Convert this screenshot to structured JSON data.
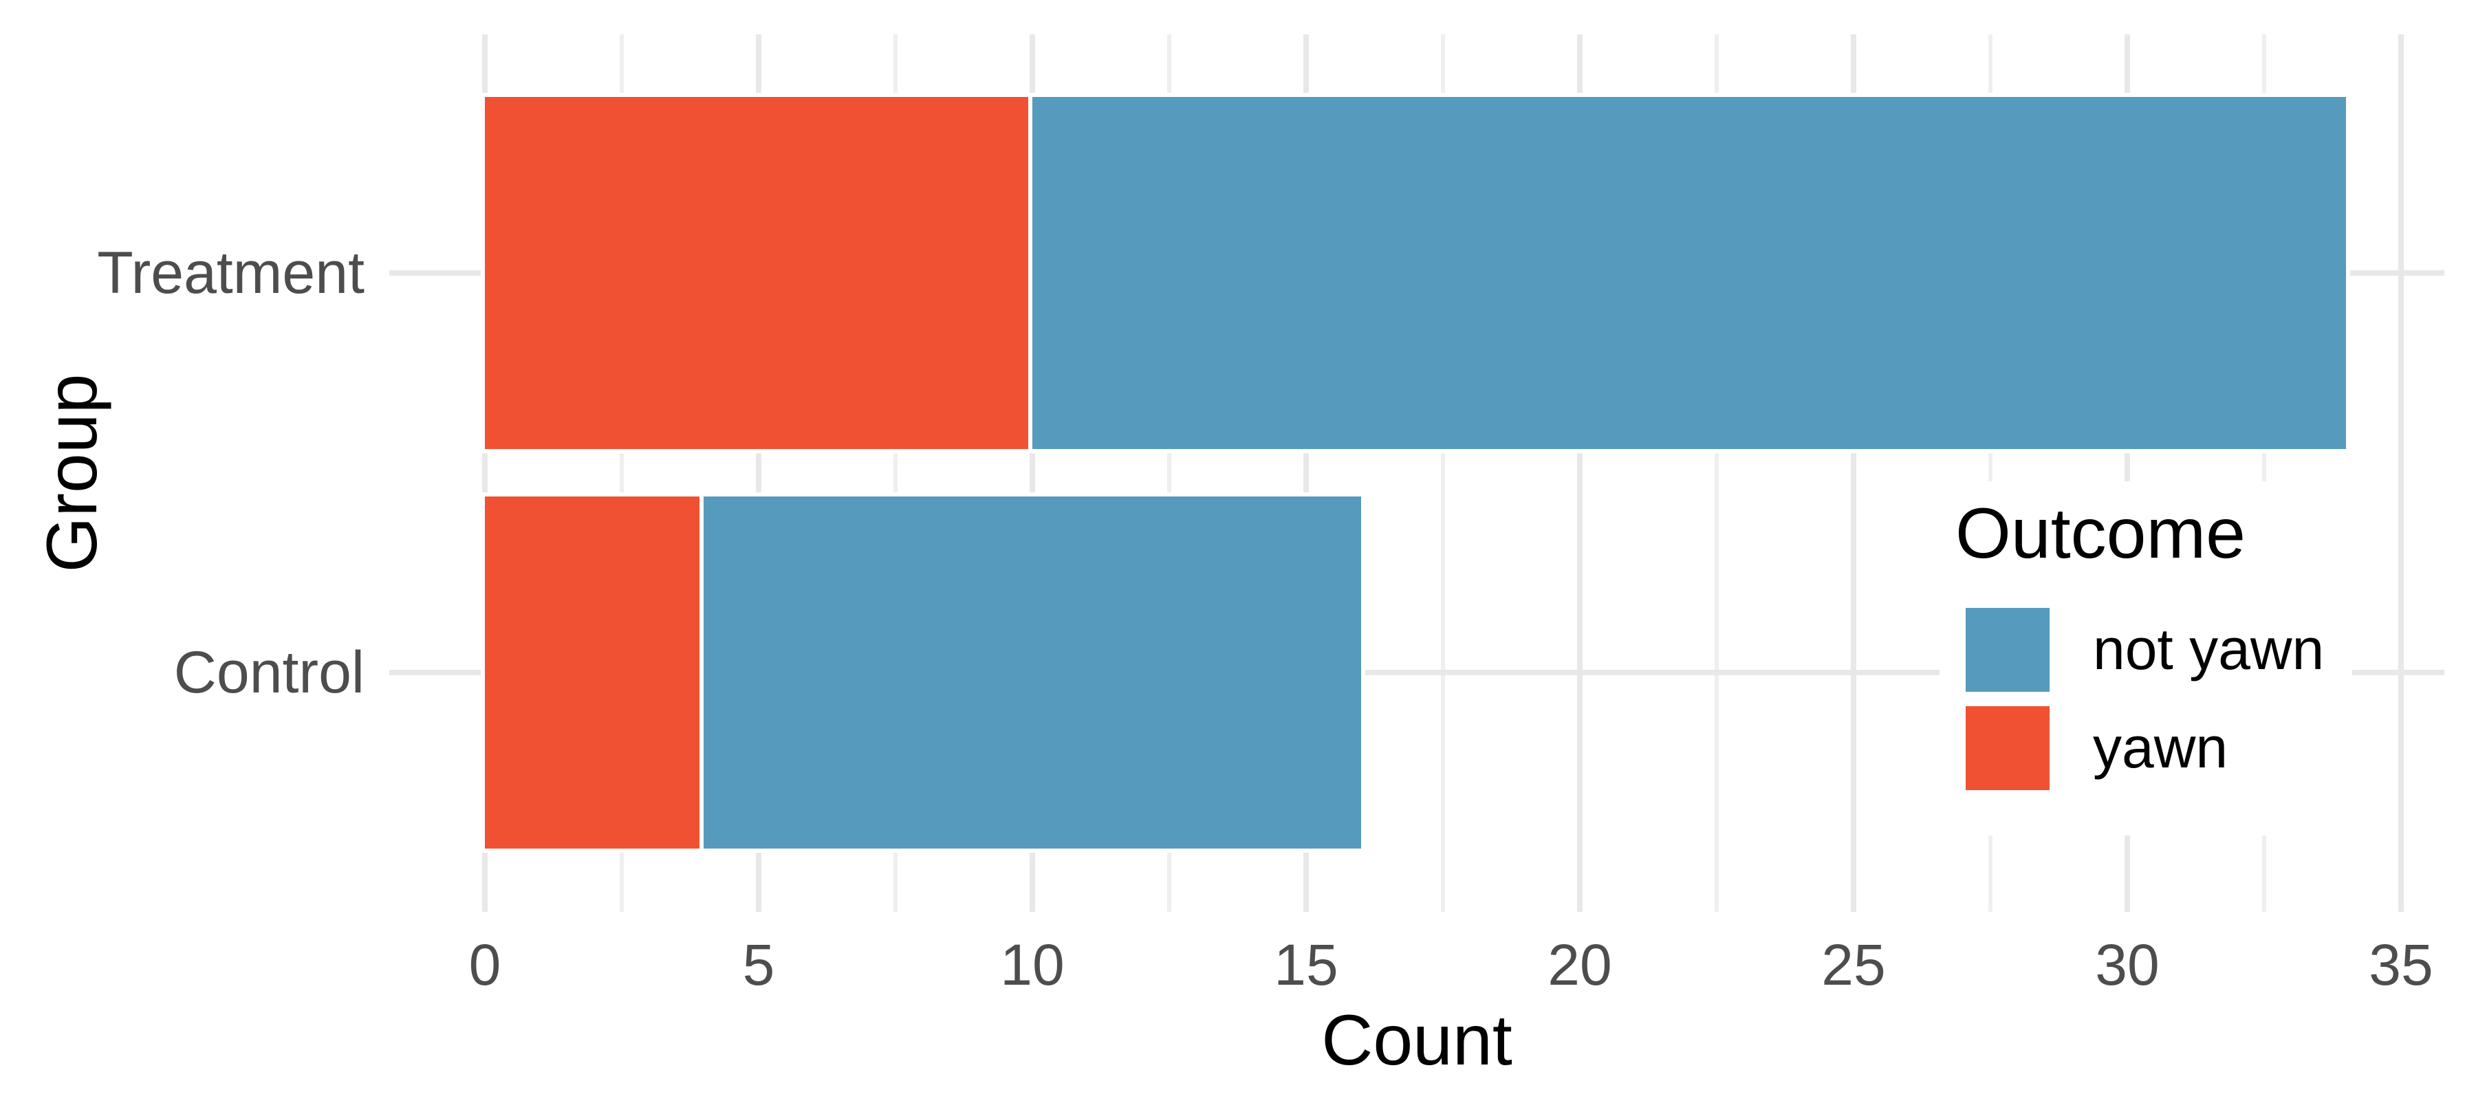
{
  "chart_data": {
    "type": "bar",
    "orientation": "horizontal",
    "stacked": true,
    "title": "",
    "xlabel": "Count",
    "ylabel": "Group",
    "categories": [
      "Treatment",
      "Control"
    ],
    "series": [
      {
        "name": "yawn",
        "color": "#F05133",
        "values": [
          10,
          4
        ]
      },
      {
        "name": "not yawn",
        "color": "#569BBD",
        "values": [
          24,
          12
        ]
      }
    ],
    "stack_totals": [
      34,
      16
    ],
    "x_axis": {
      "lim": [
        0,
        35
      ],
      "ticks": [
        0,
        5,
        10,
        15,
        20,
        25,
        30,
        35
      ],
      "minor_ticks": [
        2.5,
        7.5,
        12.5,
        17.5,
        22.5,
        27.5,
        32.5
      ]
    },
    "legend": {
      "title": "Outcome",
      "position": "inside-right",
      "entries": [
        {
          "label": "not yawn",
          "color": "#569BBD"
        },
        {
          "label": "yawn",
          "color": "#F05133"
        }
      ]
    },
    "style": {
      "background": "#FFFFFF",
      "grid_major_color": "#E8E8E8",
      "grid_minor_color": "#EFEFEF",
      "grid_on": true,
      "axis_text_color": "#4D4D4D",
      "title_text_color": "#000000",
      "bar_outline_color": "#FFFFFF"
    }
  }
}
